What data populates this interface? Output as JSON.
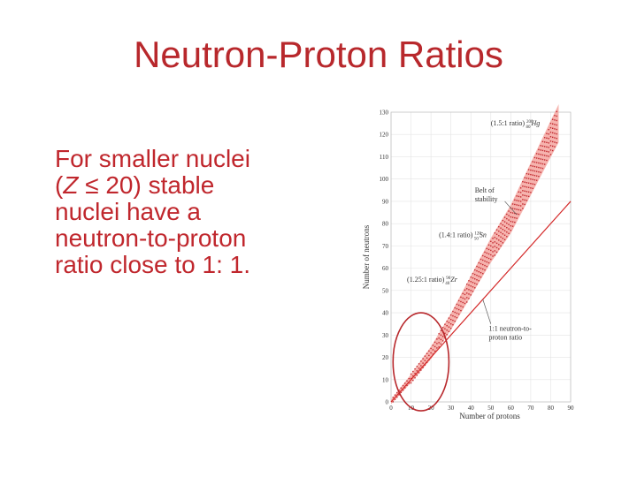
{
  "slide": {
    "title": "Neutron-Proton Ratios",
    "body_lines": [
      {
        "pre": "For smaller nuclei",
        "var": "",
        "post": ""
      },
      {
        "pre": "(",
        "var": "Z",
        "post": " ≤ 20) stable"
      },
      {
        "pre": "nuclei have a",
        "var": "",
        "post": ""
      },
      {
        "pre": "neutron-to-proton",
        "var": "",
        "post": ""
      },
      {
        "pre": "ratio close to 1: 1.",
        "var": "",
        "post": ""
      }
    ]
  },
  "chart_data": {
    "type": "scatter",
    "title": "",
    "xlabel": "Number of protons",
    "ylabel": "Number of neutrons",
    "xlim": [
      0,
      90
    ],
    "ylim": [
      0,
      130
    ],
    "x_ticks": [
      0,
      10,
      20,
      30,
      40,
      50,
      60,
      70,
      80,
      90
    ],
    "y_ticks": [
      0,
      10,
      20,
      30,
      40,
      50,
      60,
      70,
      80,
      90,
      100,
      110,
      120,
      130
    ],
    "grid": true,
    "band_color": "#f4a6a0",
    "point_color": "#c0272d",
    "line_color": "#d42a2a",
    "circle_color": "#b8282c",
    "belt_center": [
      [
        0,
        0
      ],
      [
        10,
        10.5
      ],
      [
        20,
        22
      ],
      [
        30,
        36
      ],
      [
        40,
        52
      ],
      [
        50,
        68
      ],
      [
        60,
        82
      ],
      [
        70,
        100
      ],
      [
        80,
        118
      ],
      [
        84,
        125
      ]
    ],
    "reference_line": {
      "name": "1:1 neutron-to-proton ratio",
      "points": [
        [
          0,
          0
        ],
        [
          90,
          90
        ]
      ]
    },
    "highlight_circle": {
      "cx": 15,
      "cy": 18,
      "rx": 14,
      "ry": 22
    },
    "annotations": [
      {
        "name": "mercury",
        "ratio_text": "(1.5:1 ratio)",
        "symbol": "Hg",
        "mass": "200",
        "atomic": "80",
        "at": [
          50,
          124
        ]
      },
      {
        "name": "tin",
        "ratio_text": "(1.4:1 ratio)",
        "symbol": "Sn",
        "mass": "120",
        "atomic": "50",
        "at": [
          24,
          74
        ]
      },
      {
        "name": "zirconium",
        "ratio_text": "(1.25:1 ratio)",
        "symbol": "Zr",
        "mass": "90",
        "atomic": "40",
        "at": [
          8,
          54
        ]
      }
    ],
    "labels": {
      "belt_line1": "Belt of",
      "belt_line2": "stability",
      "ratio_line1": "1:1 neutron-to-",
      "ratio_line2": "proton ratio"
    }
  }
}
